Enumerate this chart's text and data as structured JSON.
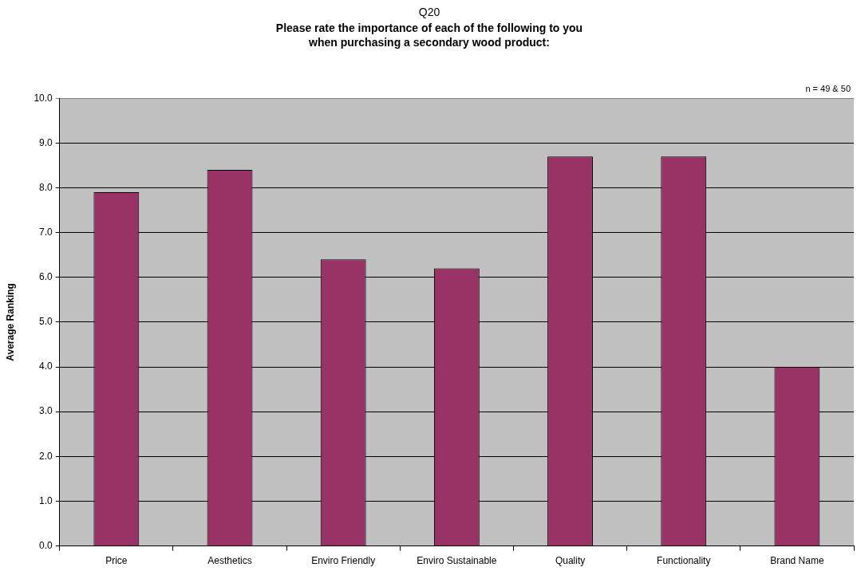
{
  "chart_data": {
    "type": "bar",
    "title": "Q20",
    "subtitle": "Please rate the importance of each of the following to you\nwhen purchasing a secondary wood product:",
    "ylabel": "Average Ranking",
    "annotations": [
      "n = 49 & 50"
    ],
    "categories": [
      "Price",
      "Aesthetics",
      "Enviro Friendly",
      "Enviro Sustainable",
      "Quality",
      "Functionality",
      "Brand Name"
    ],
    "values": [
      7.9,
      8.4,
      6.4,
      6.2,
      8.7,
      8.7,
      4.0
    ],
    "color": "#993366",
    "ylim": [
      0,
      10
    ],
    "yticks": [
      {
        "value": 0,
        "label": "0.0"
      },
      {
        "value": 1,
        "label": "1.0"
      },
      {
        "value": 2,
        "label": "2.0"
      },
      {
        "value": 3,
        "label": "3.0"
      },
      {
        "value": 4,
        "label": "4.0"
      },
      {
        "value": 5,
        "label": "5.0"
      },
      {
        "value": 6,
        "label": "6.0"
      },
      {
        "value": 7,
        "label": "7.0"
      },
      {
        "value": 8,
        "label": "8.0"
      },
      {
        "value": 9,
        "label": "9.0"
      },
      {
        "value": 10,
        "label": "10.0"
      }
    ],
    "grid": "y"
  }
}
